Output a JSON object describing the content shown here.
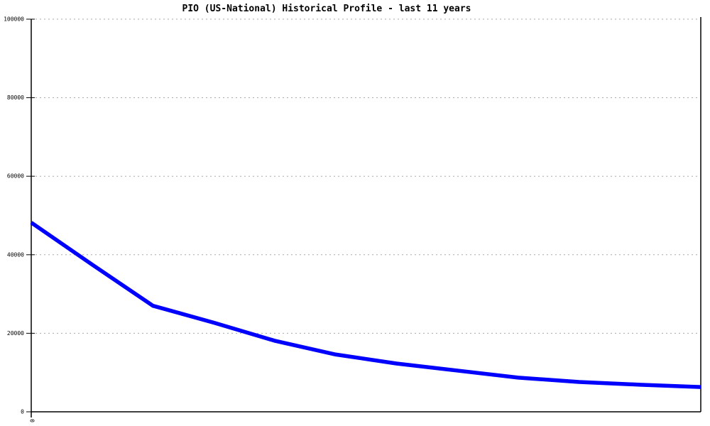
{
  "chart_data": {
    "type": "line",
    "title": "PIO (US-National) Historical Profile - last 11 years",
    "x": [
      0,
      1,
      2,
      3,
      4,
      5,
      6,
      7,
      8,
      9,
      10,
      11
    ],
    "series": [
      {
        "name": "PIO",
        "color": "#0000ff",
        "values": [
          48200,
          37500,
          27000,
          22700,
          18100,
          14600,
          12300,
          10500,
          8700,
          7600,
          6900,
          6300
        ]
      }
    ],
    "xlabel": "",
    "ylabel": "",
    "xlim": [
      0,
      11
    ],
    "ylim": [
      0,
      100000
    ],
    "yticks": [
      0,
      20000,
      40000,
      60000,
      80000,
      100000
    ],
    "ytick_labels": [
      "0",
      "20000",
      "40000",
      "60000",
      "80000",
      "100000"
    ],
    "xticks": [
      0
    ],
    "xtick_labels": [
      "0"
    ],
    "xtick_label_rotation_deg": 90,
    "grid": "horizontal-dotted",
    "grid_color": "#a8a8a8",
    "axis_color": "#000000",
    "background": "#ffffff",
    "legend": "none"
  }
}
